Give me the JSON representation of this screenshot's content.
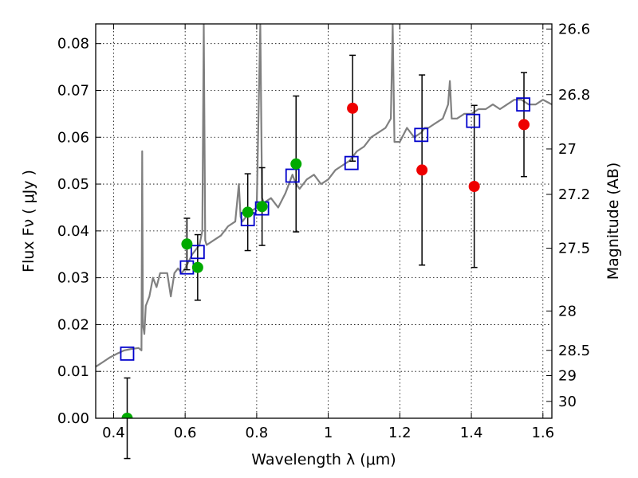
{
  "chart_data": {
    "type": "scatter",
    "title": "",
    "xlabel": "Wavelength  λ (μm)",
    "ylabel": "Flux  Fν  ( μJy )",
    "y2label": "Magnitude (AB)",
    "xlim": [
      0.35,
      1.625
    ],
    "ylim": [
      0.0,
      0.0842
    ],
    "x_ticks": [
      0.4,
      0.6,
      0.8,
      1.0,
      1.2,
      1.4,
      1.6
    ],
    "x_tick_labels": [
      "0.4",
      "0.6",
      "0.8",
      "1",
      "1.2",
      "1.4",
      "1.6"
    ],
    "y_ticks": [
      0.0,
      0.01,
      0.02,
      0.03,
      0.04,
      0.05,
      0.06,
      0.07,
      0.08
    ],
    "y_tick_labels": [
      "0.00",
      "0.01",
      "0.02",
      "0.03",
      "0.04",
      "0.05",
      "0.06",
      "0.07",
      "0.08"
    ],
    "y2_ticks": [
      {
        "label": "26.6",
        "flux": 0.0831
      },
      {
        "label": "26.8",
        "flux": 0.0691
      },
      {
        "label": "27",
        "flux": 0.0575
      },
      {
        "label": "27.2",
        "flux": 0.0478
      },
      {
        "label": "27.5",
        "flux": 0.0363
      },
      {
        "label": "28",
        "flux": 0.0229
      },
      {
        "label": "28.5",
        "flux": 0.0145
      },
      {
        "label": "29",
        "flux": 0.0091
      },
      {
        "label": "30",
        "flux": 0.0036
      }
    ],
    "grid": true,
    "colors": {
      "model": "#808080",
      "green": "#00aa00",
      "red": "#ee0000",
      "box": "#0000cc",
      "errorbar": "#000000"
    },
    "series": [
      {
        "kind": "line",
        "x": [
          0.35,
          0.37,
          0.39,
          0.41,
          0.43,
          0.45,
          0.47,
          0.478,
          0.48,
          0.482,
          0.486,
          0.49,
          0.5,
          0.51,
          0.52,
          0.53,
          0.55,
          0.56,
          0.57,
          0.58,
          0.59,
          0.6,
          0.62,
          0.64,
          0.648,
          0.652,
          0.656,
          0.66,
          0.68,
          0.7,
          0.72,
          0.74,
          0.75,
          0.755,
          0.76,
          0.78,
          0.8,
          0.81,
          0.815,
          0.82,
          0.84,
          0.86,
          0.88,
          0.9,
          0.91,
          0.92,
          0.94,
          0.96,
          0.98,
          1.0,
          1.02,
          1.04,
          1.06,
          1.08,
          1.1,
          1.12,
          1.14,
          1.16,
          1.175,
          1.18,
          1.185,
          1.2,
          1.22,
          1.24,
          1.26,
          1.27,
          1.28,
          1.3,
          1.32,
          1.335,
          1.34,
          1.345,
          1.36,
          1.38,
          1.4,
          1.42,
          1.44,
          1.46,
          1.48,
          1.5,
          1.52,
          1.54,
          1.56,
          1.58,
          1.6,
          1.625
        ],
        "y": [
          0.011,
          0.012,
          0.013,
          0.0138,
          0.0145,
          0.0148,
          0.015,
          0.0145,
          0.057,
          0.02,
          0.018,
          0.024,
          0.026,
          0.03,
          0.028,
          0.031,
          0.031,
          0.026,
          0.031,
          0.032,
          0.031,
          0.032,
          0.035,
          0.037,
          0.04,
          0.084,
          0.038,
          0.037,
          0.038,
          0.039,
          0.041,
          0.042,
          0.05,
          0.043,
          0.042,
          0.044,
          0.045,
          0.084,
          0.047,
          0.046,
          0.047,
          0.045,
          0.048,
          0.052,
          0.05,
          0.049,
          0.051,
          0.052,
          0.05,
          0.051,
          0.053,
          0.054,
          0.055,
          0.057,
          0.058,
          0.06,
          0.061,
          0.062,
          0.064,
          0.084,
          0.059,
          0.059,
          0.062,
          0.06,
          0.061,
          0.062,
          0.062,
          0.063,
          0.064,
          0.067,
          0.072,
          0.064,
          0.064,
          0.065,
          0.065,
          0.066,
          0.066,
          0.067,
          0.066,
          0.067,
          0.068,
          0.068,
          0.067,
          0.067,
          0.068,
          0.067
        ]
      },
      {
        "kind": "boxes",
        "x": [
          0.438,
          0.605,
          0.635,
          0.775,
          0.815,
          0.9,
          1.065,
          1.26,
          1.405,
          1.545
        ],
        "y": [
          0.0138,
          0.0322,
          0.0355,
          0.0425,
          0.0448,
          0.0518,
          0.0545,
          0.0605,
          0.0635,
          0.067
        ]
      },
      {
        "kind": "points",
        "color": "green",
        "x": [
          0.438,
          0.605,
          0.635,
          0.775,
          0.815,
          0.91
        ],
        "y": [
          0.0,
          0.0372,
          0.0322,
          0.044,
          0.0452,
          0.0543
        ],
        "err": [
          0.0086,
          0.0055,
          0.007,
          0.0082,
          0.0083,
          0.0145
        ]
      },
      {
        "kind": "points",
        "color": "red",
        "x": [
          1.068,
          1.262,
          1.408,
          1.547
        ],
        "y": [
          0.0662,
          0.053,
          0.0495,
          0.0627
        ],
        "err": [
          0.0113,
          0.0203,
          0.0173,
          0.0111
        ]
      }
    ]
  }
}
